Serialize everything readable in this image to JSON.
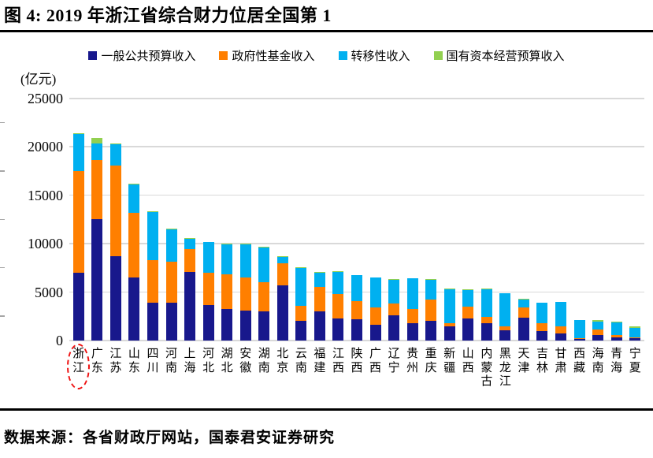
{
  "figure": {
    "title": "图 4:  2019 年浙江省综合财力位居全国第 1",
    "source": "数据来源：各省财政厅网站，国泰君安证券研究"
  },
  "chart_data": {
    "type": "bar",
    "subtype": "stacked-vertical",
    "unit_label": "(亿元)",
    "ylim": [
      0,
      25000
    ],
    "yticks": [
      0,
      5000,
      10000,
      15000,
      20000,
      25000
    ],
    "minor_yticks": [
      2500,
      7500,
      12500,
      17500,
      22500
    ],
    "grid": "horizontal",
    "legend_position": "top-center",
    "highlight_category": "浙江",
    "highlight_style": "red-dashed-ellipse",
    "categories": [
      "浙江",
      "广东",
      "江苏",
      "山东",
      "四川",
      "河南",
      "上海",
      "河北",
      "湖北",
      "安徽",
      "湖南",
      "北京",
      "云南",
      "福建",
      "江西",
      "陕西",
      "广西",
      "辽宁",
      "贵州",
      "重庆",
      "新疆",
      "山西",
      "内蒙古",
      "黑龙江",
      "天津",
      "吉林",
      "甘肃",
      "西藏",
      "海南",
      "青海",
      "宁夏"
    ],
    "series": [
      {
        "name": "一般公共预算收入",
        "color": "#18188c",
        "values": [
          7000,
          12550,
          8700,
          6480,
          3950,
          3950,
          7070,
          3670,
          3260,
          3080,
          3000,
          5710,
          2040,
          3000,
          2320,
          2180,
          1630,
          2590,
          1770,
          2040,
          1440,
          2320,
          1770,
          1090,
          2370,
          1010,
          730,
          150,
          550,
          300,
          245
        ]
      },
      {
        "name": "政府性基金收入",
        "color": "#ff7f00",
        "values": [
          10550,
          6100,
          9380,
          6710,
          4350,
          4210,
          2370,
          3350,
          3590,
          3450,
          2990,
          2260,
          1580,
          2500,
          2450,
          1900,
          1770,
          1220,
          1490,
          2180,
          390,
          1220,
          680,
          410,
          1090,
          760,
          710,
          120,
          620,
          280,
          115
        ]
      },
      {
        "name": "转移性收入",
        "color": "#00b0f0",
        "values": [
          3750,
          1750,
          2200,
          2910,
          4950,
          3340,
          1040,
          3130,
          3110,
          3420,
          3620,
          660,
          3870,
          1520,
          2310,
          2670,
          3080,
          2480,
          3140,
          2060,
          3480,
          1660,
          2860,
          3350,
          760,
          2130,
          2520,
          1850,
          820,
          1270,
          945
        ]
      },
      {
        "name": "国有资本经营预算收入",
        "color": "#92d050",
        "values": [
          100,
          550,
          120,
          80,
          80,
          60,
          130,
          50,
          50,
          50,
          50,
          70,
          50,
          50,
          50,
          50,
          50,
          50,
          50,
          60,
          50,
          60,
          50,
          50,
          80,
          50,
          40,
          40,
          130,
          140,
          140
        ]
      }
    ]
  },
  "colors": {
    "gridline": "#d9d9d9",
    "highlight": "#ee1111",
    "rule": "#000000"
  }
}
